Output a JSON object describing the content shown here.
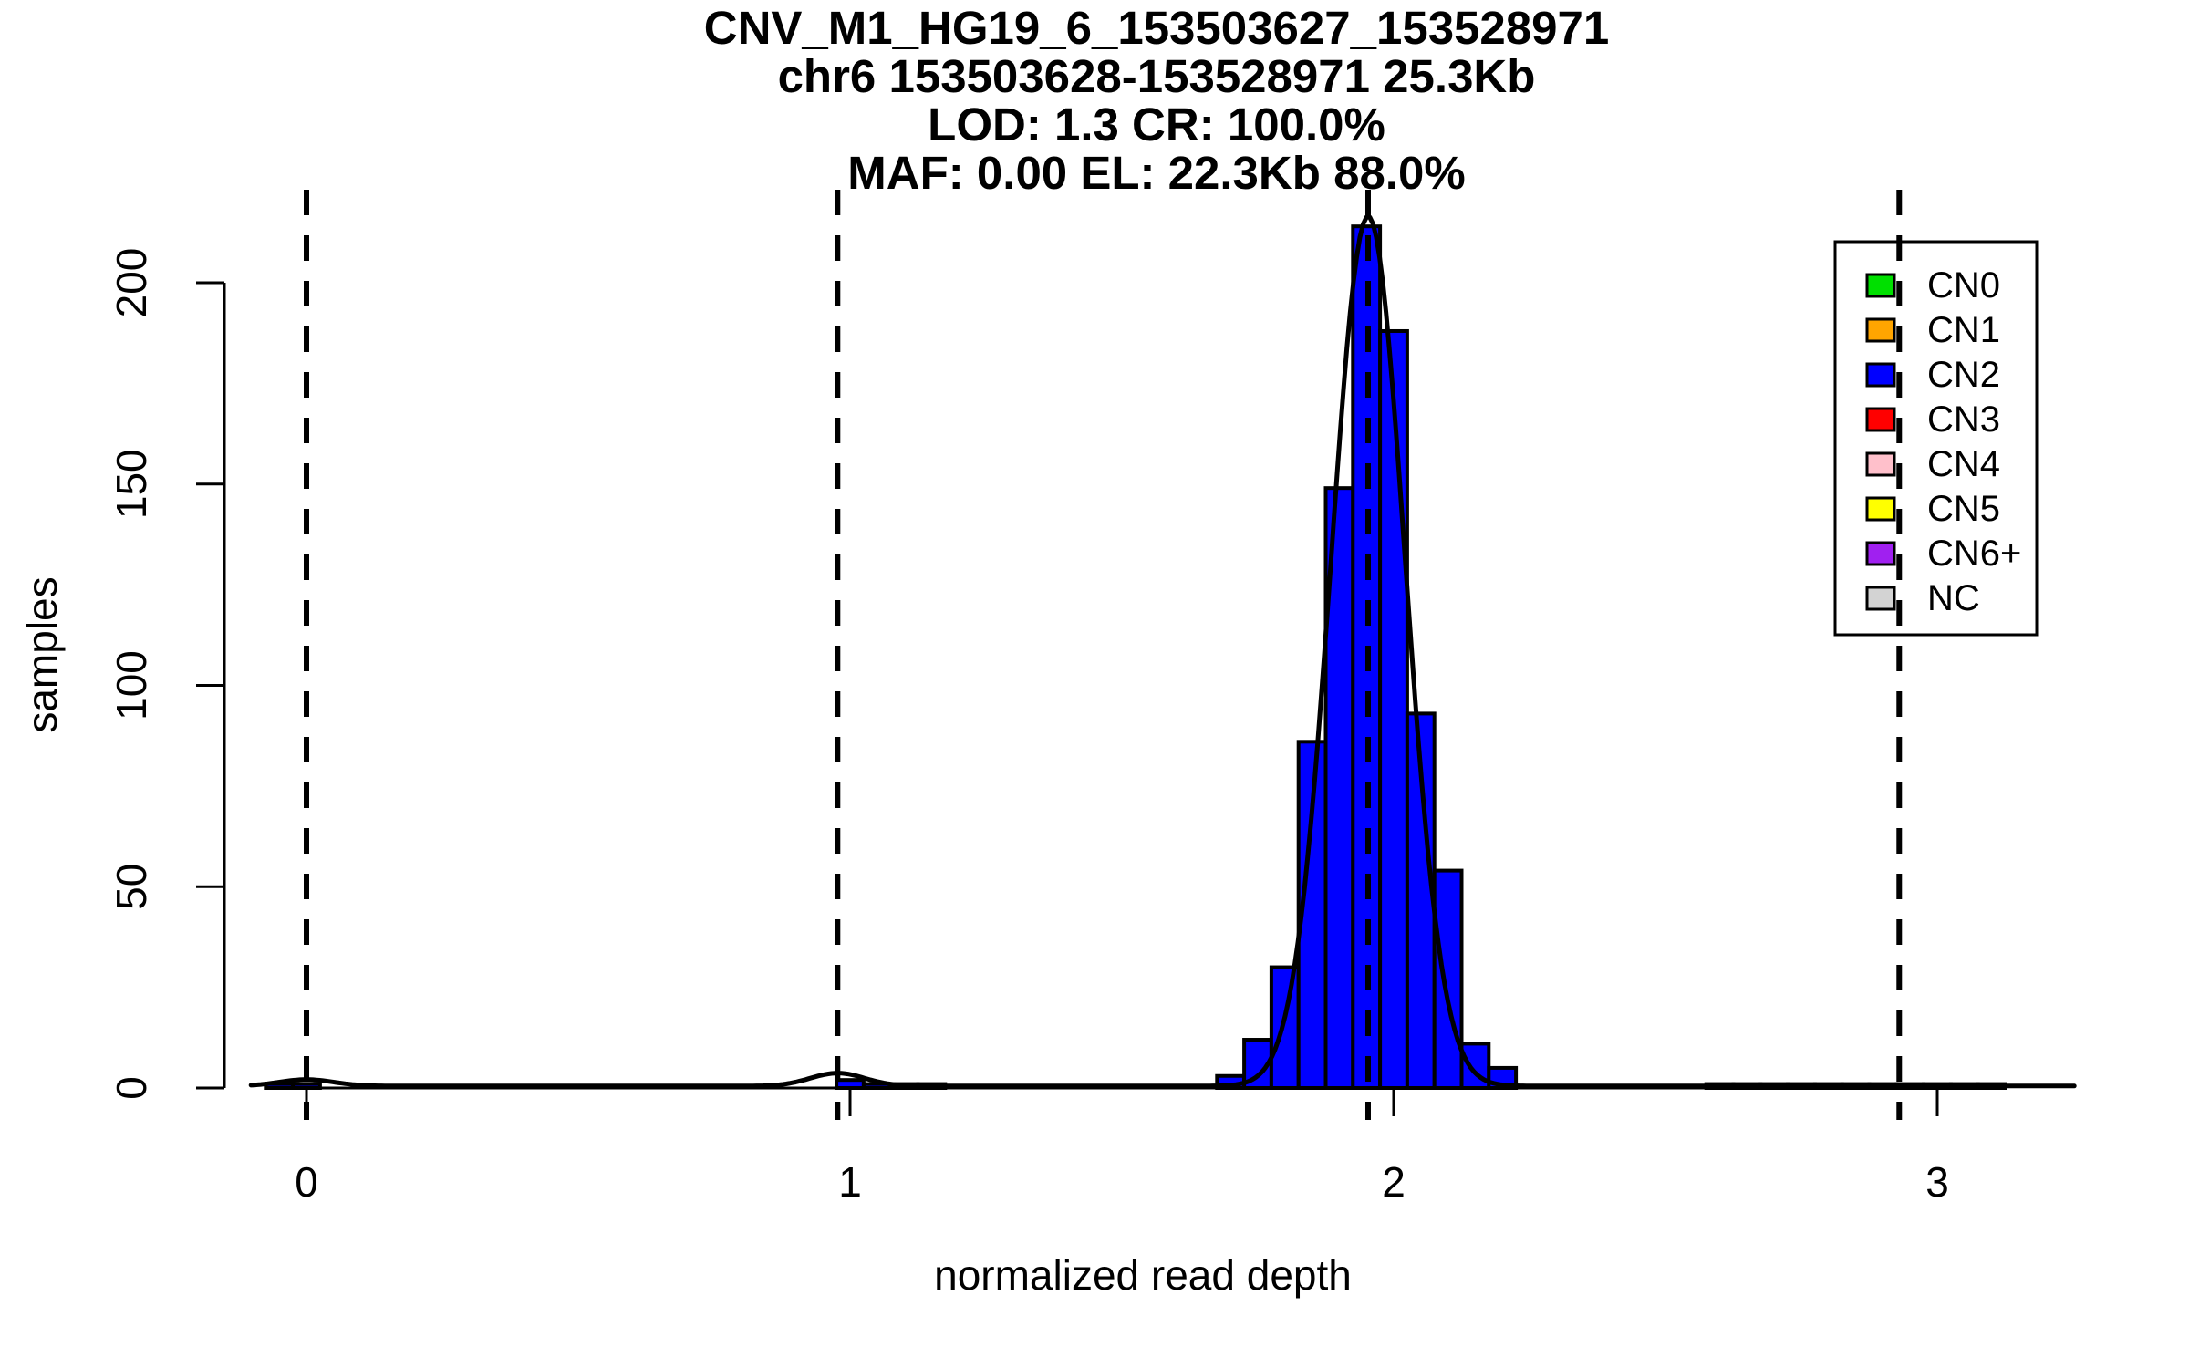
{
  "title": {
    "line1": "CNV_M1_HG19_6_153503627_153528971",
    "line2": "chr6 153503628-153528971 25.3Kb",
    "line3": "LOD: 1.3 CR: 100.0%",
    "line4": "MAF: 0.00 EL: 22.3Kb 88.0%"
  },
  "chart_data": {
    "type": "bar",
    "subtype": "histogram-with-density",
    "title": "CNV_M1_HG19_6_153503627_153528971 / chr6 153503628-153528971 25.3Kb / LOD: 1.3 CR: 100.0% / MAF: 0.00 EL: 22.3Kb 88.0%",
    "xlabel": "normalized read depth",
    "ylabel": "samples",
    "x_ticks": [
      "0",
      "1",
      "2",
      "3"
    ],
    "x_tick_values": [
      0,
      1,
      2,
      3
    ],
    "y_ticks": [
      "0",
      "50",
      "100",
      "150",
      "200"
    ],
    "y_tick_values": [
      0,
      50,
      100,
      150,
      200
    ],
    "xlim": [
      -0.12,
      3.28
    ],
    "ylim": [
      0,
      224
    ],
    "grid": false,
    "bar_color": "#0000FF",
    "bar_border_color": "#000000",
    "bin_width": 0.05,
    "bins": [
      {
        "x": -0.075,
        "count": 1
      },
      {
        "x": -0.025,
        "count": 1
      },
      {
        "x": 0.975,
        "count": 2
      },
      {
        "x": 1.025,
        "count": 1
      },
      {
        "x": 1.075,
        "count": 1
      },
      {
        "x": 1.125,
        "count": 1
      },
      {
        "x": 1.675,
        "count": 3
      },
      {
        "x": 1.725,
        "count": 12
      },
      {
        "x": 1.775,
        "count": 30
      },
      {
        "x": 1.825,
        "count": 86
      },
      {
        "x": 1.875,
        "count": 149
      },
      {
        "x": 1.925,
        "count": 214
      },
      {
        "x": 1.975,
        "count": 188
      },
      {
        "x": 2.025,
        "count": 93
      },
      {
        "x": 2.075,
        "count": 54
      },
      {
        "x": 2.125,
        "count": 11
      },
      {
        "x": 2.175,
        "count": 5
      },
      {
        "x": 2.575,
        "count": 1
      },
      {
        "x": 2.625,
        "count": 1
      },
      {
        "x": 2.675,
        "count": 1
      },
      {
        "x": 2.725,
        "count": 1
      },
      {
        "x": 2.775,
        "count": 1
      },
      {
        "x": 2.825,
        "count": 1
      },
      {
        "x": 2.875,
        "count": 1
      },
      {
        "x": 2.925,
        "count": 1
      },
      {
        "x": 2.975,
        "count": 1
      },
      {
        "x": 3.025,
        "count": 1
      },
      {
        "x": 3.075,
        "count": 1
      }
    ],
    "dashed_guide_lines_x": [
      0,
      0.977,
      1.953,
      2.93
    ],
    "curve": {
      "color": "#000000",
      "baseline": 0.5,
      "range": [
        -0.102,
        3.253
      ],
      "components": [
        {
          "amp": 216,
          "mean": 1.953,
          "sd": 0.068
        },
        {
          "amp": 3.2,
          "mean": 0.977,
          "sd": 0.05
        },
        {
          "amp": 1.6,
          "mean": 0.0,
          "sd": 0.05
        }
      ]
    },
    "legend": {
      "position": "top-right",
      "items": [
        {
          "label": "CN0",
          "color": "#00E000"
        },
        {
          "label": "CN1",
          "color": "#FFA500"
        },
        {
          "label": "CN2",
          "color": "#0000FF"
        },
        {
          "label": "CN3",
          "color": "#FF0000"
        },
        {
          "label": "CN4",
          "color": "#FFC0CB"
        },
        {
          "label": "CN5",
          "color": "#FFFF00"
        },
        {
          "label": "CN6+",
          "color": "#A020F0"
        },
        {
          "label": "NC",
          "color": "#D3D3D3"
        }
      ]
    }
  }
}
